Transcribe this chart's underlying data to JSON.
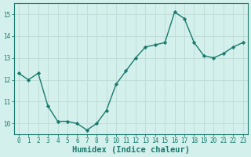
{
  "x": [
    0,
    1,
    2,
    3,
    4,
    5,
    6,
    7,
    8,
    9,
    10,
    11,
    12,
    13,
    14,
    15,
    16,
    17,
    18,
    19,
    20,
    21,
    22,
    23
  ],
  "y": [
    12.3,
    12.0,
    12.3,
    10.8,
    10.1,
    10.1,
    10.0,
    9.7,
    10.0,
    10.6,
    11.8,
    12.4,
    13.0,
    13.5,
    13.6,
    13.7,
    15.1,
    14.8,
    13.7,
    13.1,
    13.0,
    13.2,
    13.5,
    13.7
  ],
  "line_color": "#1a7a6e",
  "marker": "D",
  "marker_size": 2.2,
  "bg_color": "#d4f0ec",
  "grid_color": "#c0ddd8",
  "axis_color": "#1a7a6e",
  "tick_color": "#1a7a6e",
  "xlabel": "Humidex (Indice chaleur)",
  "ylim": [
    9.5,
    15.5
  ],
  "yticks": [
    10,
    11,
    12,
    13,
    14,
    15
  ],
  "xlim": [
    -0.5,
    23.5
  ],
  "xticks": [
    0,
    1,
    2,
    3,
    4,
    5,
    6,
    7,
    8,
    9,
    10,
    11,
    12,
    13,
    14,
    15,
    16,
    17,
    18,
    19,
    20,
    21,
    22,
    23
  ],
  "tick_fontsize": 5.5,
  "xlabel_fontsize": 7.5,
  "line_width": 1.0
}
